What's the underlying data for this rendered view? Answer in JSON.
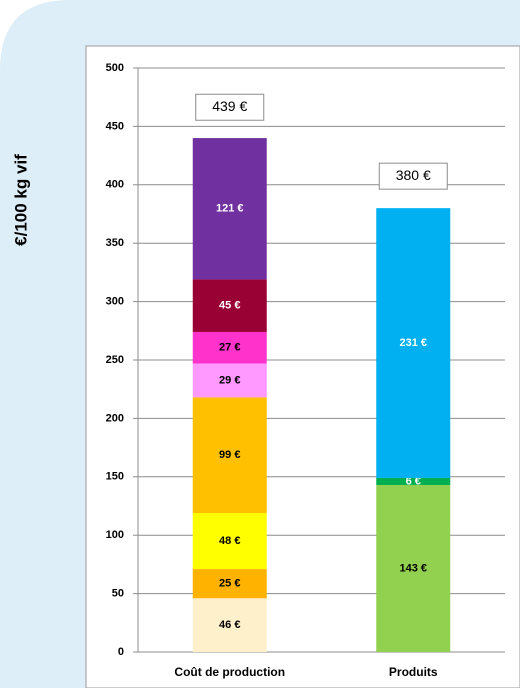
{
  "chart_data": {
    "type": "stacked_bar",
    "y_axis_label": "€/100 kg vif",
    "categories": [
      "Coût de production",
      "Produits"
    ],
    "ylim": [
      0,
      500
    ],
    "yticks": [
      0,
      50,
      100,
      150,
      200,
      250,
      300,
      350,
      400,
      450,
      500
    ],
    "grid": true,
    "series": [
      {
        "color": "#fff0cc",
        "label_color": "#000000",
        "values": [
          46,
          null
        ],
        "value_labels": [
          "46 €",
          null
        ]
      },
      {
        "color": "#ffb300",
        "label_color": "#000000",
        "values": [
          25,
          null
        ],
        "value_labels": [
          "25 €",
          null
        ]
      },
      {
        "color": "#ffff00",
        "label_color": "#000000",
        "values": [
          48,
          null
        ],
        "value_labels": [
          "48 €",
          null
        ]
      },
      {
        "color": "#ffc000",
        "label_color": "#000000",
        "values": [
          99,
          null
        ],
        "value_labels": [
          "99 €",
          null
        ]
      },
      {
        "color": "#ff99ff",
        "label_color": "#000000",
        "values": [
          29,
          null
        ],
        "value_labels": [
          "29 €",
          null
        ]
      },
      {
        "color": "#ff33cc",
        "label_color": "#000000",
        "values": [
          27,
          null
        ],
        "value_labels": [
          "27 €",
          null
        ]
      },
      {
        "color": "#990033",
        "label_color": "#ffffff",
        "values": [
          45,
          null
        ],
        "value_labels": [
          "45 €",
          null
        ]
      },
      {
        "color": "#7030a0",
        "label_color": "#ffffff",
        "values": [
          121,
          null
        ],
        "value_labels": [
          "121 €",
          null
        ]
      },
      {
        "color": "#92d050",
        "label_color": "#000000",
        "values": [
          null,
          143
        ],
        "value_labels": [
          null,
          "143 €"
        ]
      },
      {
        "color": "#00b050",
        "label_color": "#ffffff",
        "values": [
          null,
          6
        ],
        "value_labels": [
          null,
          "6 €"
        ]
      },
      {
        "color": "#00b0f0",
        "label_color": "#ffffff",
        "values": [
          null,
          231
        ],
        "value_labels": [
          null,
          "231 €"
        ]
      }
    ],
    "totals": {
      "values": [
        439,
        380
      ],
      "value_labels": [
        "439 €",
        "380 €"
      ]
    }
  }
}
